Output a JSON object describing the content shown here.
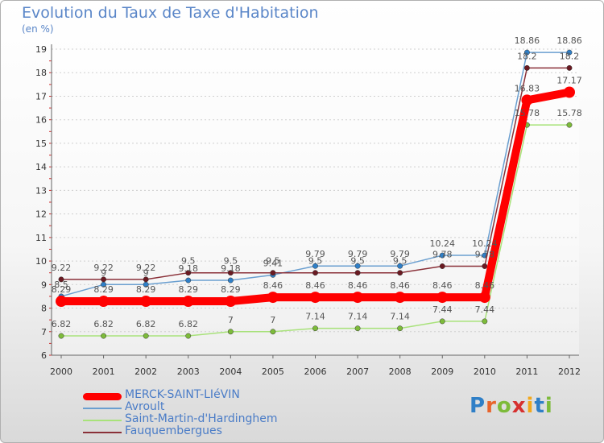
{
  "title": "Evolution du Taux de Taxe d'Habitation",
  "unit": "(en %)",
  "logo": {
    "text": "Proxiti",
    "letter_colors": [
      "#2f7fc7",
      "#e8642c",
      "#7dbb3a",
      "#d6302f",
      "#f2a81c",
      "#2f7fc7",
      "#7dbb3a"
    ]
  },
  "chart_data": {
    "type": "line",
    "title": "Evolution du Taux de Taxe d'Habitation",
    "ylabel": "(en %)",
    "xlabel": "",
    "ylim": [
      6,
      19
    ],
    "yticks": [
      6,
      7,
      8,
      9,
      10,
      11,
      12,
      13,
      14,
      15,
      16,
      17,
      18,
      19
    ],
    "categories": [
      "2000",
      "2001",
      "2002",
      "2003",
      "2004",
      "2005",
      "2006",
      "2007",
      "2008",
      "2009",
      "2010",
      "2011",
      "2012"
    ],
    "grid": true,
    "legend_position": "bottom-left",
    "series": [
      {
        "name": "MERCK-SAINT-LIéVIN",
        "color": "#ff0000",
        "emphasis": true,
        "values": [
          8.29,
          8.29,
          8.29,
          8.29,
          8.29,
          8.46,
          8.46,
          8.46,
          8.46,
          8.46,
          8.46,
          16.83,
          17.17
        ],
        "labels": [
          "8.29",
          "8.29",
          "8.29",
          "8.29",
          "8.29",
          "8.46",
          "8.46",
          "8.46",
          "8.46",
          "8.46",
          "8.46",
          "16.83",
          "17.17"
        ]
      },
      {
        "name": "Avroult",
        "color": "#6a9fd0",
        "marker": "#2f7fc7",
        "values": [
          8.5,
          9.0,
          9.0,
          9.18,
          9.18,
          9.41,
          9.79,
          9.79,
          9.79,
          10.24,
          10.24,
          18.86,
          18.86
        ],
        "labels": [
          "8.5",
          "9",
          "9",
          "9.18",
          "9.18",
          "9.41",
          "9.79",
          "9.79",
          "9.79",
          "10.24",
          "10.24",
          "18.86",
          "18.86"
        ]
      },
      {
        "name": "Saint-Martin-d'Hardinghem",
        "color": "#a8e27a",
        "marker": "#7dbb3a",
        "values": [
          6.82,
          6.82,
          6.82,
          6.82,
          7,
          7,
          7.14,
          7.14,
          7.14,
          7.44,
          7.44,
          15.78,
          15.78
        ],
        "labels": [
          "6.82",
          "6.82",
          "6.82",
          "6.82",
          "7",
          "7",
          "7.14",
          "7.14",
          "7.14",
          "7.44",
          "7.44",
          "15.78",
          "15.78"
        ]
      },
      {
        "name": "Fauquembergues",
        "color": "#8a3038",
        "marker": "#6a1a22",
        "values": [
          9.22,
          9.22,
          9.22,
          9.5,
          9.5,
          9.5,
          9.5,
          9.5,
          9.5,
          9.78,
          9.78,
          18.2,
          18.2
        ],
        "labels": [
          "9.22",
          "9.22",
          "9.22",
          "9.5",
          "9.5",
          "9.5",
          "9.5",
          "9.5",
          "9.5",
          "9.78",
          "9.78",
          "18.2",
          "18.2"
        ]
      }
    ]
  }
}
